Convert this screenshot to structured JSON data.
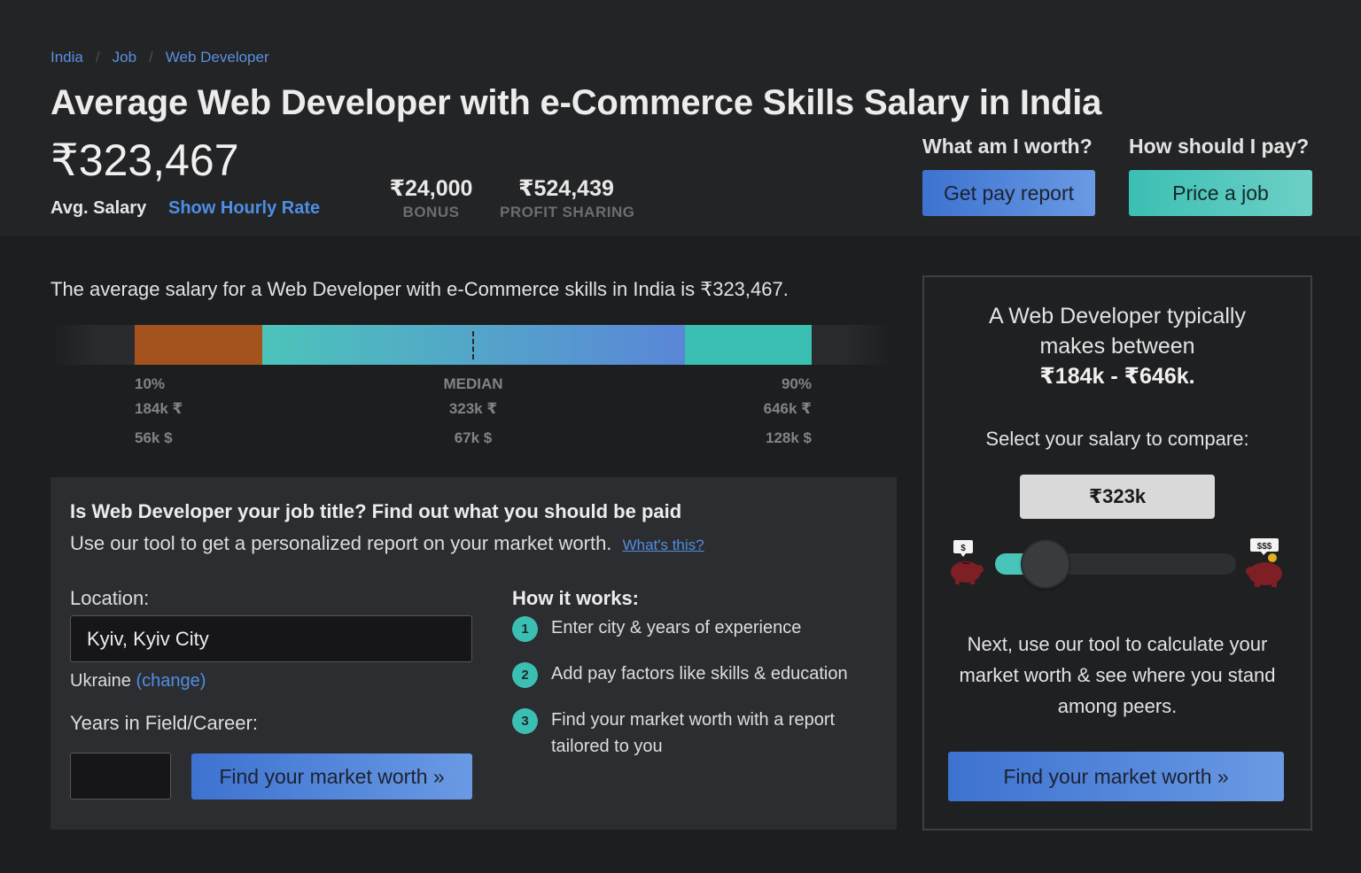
{
  "breadcrumb": [
    "India",
    "Job",
    "Web Developer"
  ],
  "breadcrumb_separator": "/",
  "title": "Average Web Developer with e-Commerce Skills Salary in India",
  "avg_salary": {
    "value": "₹323,467",
    "label": "Avg. Salary",
    "hourly_link": "Show Hourly Rate"
  },
  "stats": [
    {
      "value": "₹24,000",
      "label": "BONUS"
    },
    {
      "value": "₹524,439",
      "label": "PROFIT SHARING"
    }
  ],
  "cta": {
    "worth_question": "What am I worth?",
    "worth_button": "Get pay report",
    "pay_question": "How should I pay?",
    "pay_button": "Price a job"
  },
  "distribution": {
    "intro": "The average salary for a Web Developer with e-Commerce skills in India is ₹323,467.",
    "colors": {
      "low": "#a4531f",
      "mid_start": "#4cc4ba",
      "mid_end": "#5a86d8",
      "high": "#3cbfb3"
    },
    "low": {
      "label": "10%",
      "inr": "184k ₹",
      "usd": "56k $",
      "value": 184
    },
    "median": {
      "label": "MEDIAN",
      "inr": "323k ₹",
      "usd": "67k $",
      "value": 323
    },
    "high": {
      "label": "90%",
      "inr": "646k ₹",
      "usd": "128k $",
      "value": 646
    }
  },
  "tool": {
    "title": "Is Web Developer your job title? Find out what you should be paid",
    "subtitle": "Use our tool to get a personalized report on your market worth.",
    "whats_this": "What's this?",
    "location_label": "Location:",
    "location_value": "Kyiv, Kyiv City",
    "country": "Ukraine",
    "change": "(change)",
    "years_label": "Years in Field/Career:",
    "years_value": "",
    "button": "Find your market worth »",
    "how_title": "How it works:",
    "steps": [
      {
        "num": "1",
        "text": "Enter city & years of experience"
      },
      {
        "num": "2",
        "text": "Add pay factors like skills & education"
      },
      {
        "num": "3",
        "text": "Find your market worth with a report tailored to you"
      }
    ]
  },
  "side": {
    "line1": "A Web Developer typically",
    "line2": "makes between",
    "range": "₹184k - ₹646k.",
    "compare": "Select your salary to compare:",
    "selected": "₹323k",
    "slider_fraction": 0.21,
    "pig_low_sign": "$",
    "pig_high_sign": "$$$",
    "next_text": "Next, use our tool to calculate your market worth & see where you stand among peers.",
    "button": "Find your market worth »"
  }
}
